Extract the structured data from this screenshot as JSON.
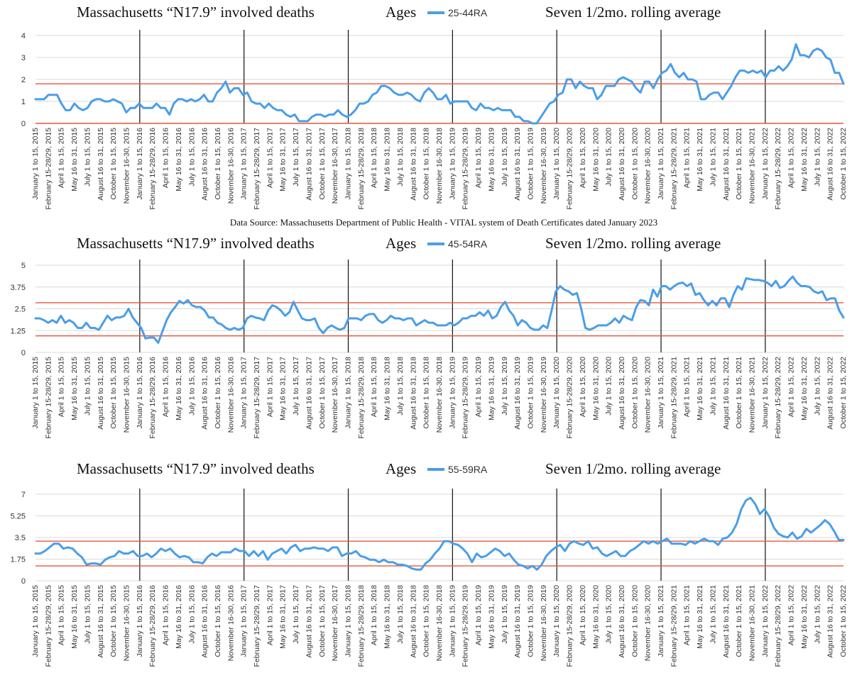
{
  "source_note": "Data Source:  Massachusetts Department of Public Health - VITAL system of Death Certificates dated January 2023",
  "x_tick_labels": [
    "January 1 to 15, 2015",
    "February 15-28/29, 2015",
    "April 1 to 15, 2015",
    "May 16 to 31, 2015",
    "July 1 to 15, 2015",
    "August 16 to 31, 2015",
    "October 1 to 15, 2015",
    "November 16-30, 2015",
    "January 1 to 15, 2016",
    "February 15-28/29, 2016",
    "April 1 to 15, 2016",
    "May 16 to 31, 2016",
    "July 1 to 15, 2016",
    "August 16 to 31, 2016",
    "October 1 to 15, 2016",
    "November 16-30, 2016",
    "January 1 to 15, 2017",
    "February 15-28/29, 2017",
    "April 1 to 15, 2017",
    "May 16 to 31, 2017",
    "July 1 to 15, 2017",
    "August 16 to 31, 2017",
    "October 1 to 15, 2017",
    "November 16-30, 2017",
    "January 1 to 15, 2018",
    "February 15-28/29, 2018",
    "April 1 to 15, 2018",
    "May 16 to 31, 2018",
    "July 1 to 15, 2018",
    "August 16 to 31, 2018",
    "October 1 to 15, 2018",
    "November 16-30, 2018",
    "January 1 to 15, 2019",
    "February 15-28/29, 2019",
    "April 1 to 15, 2019",
    "May 16 to 31, 2019",
    "July 1 to 15, 2019",
    "August 16 to 31, 2019",
    "October 1 to 15, 2019",
    "November 16-30, 2019",
    "January 1 to 15, 2020",
    "February 15-28/29, 2020",
    "April 1 to 15, 2020",
    "May 16 to 31, 2020",
    "July 1 to 15, 2020",
    "August 16 to 31, 2020",
    "October 1 to 15, 2020",
    "November 16-30, 2020",
    "January 1 to 15, 2021",
    "February 15-28/29, 2021",
    "April 1 to 15, 2021",
    "May 16 to 31, 2021",
    "July 1 to 15, 2021",
    "August 16 to 31, 2021",
    "October 1 to 15, 2021",
    "November 16-30, 2021",
    "January 1 to 15, 2022",
    "February 15-28/29, 2022",
    "April 1 to 15, 2022",
    "May 16 to 31, 2022",
    "July 1 to 15, 2022",
    "August 16 to 31, 2022",
    "October 1 to 15, 2022"
  ],
  "chart_data": [
    {
      "type": "line",
      "title": "Massachusetts “N17.9” involved deaths",
      "legend_prefix": "Ages",
      "subtitle": "Seven 1/2mo. rolling average",
      "legend_position": "top",
      "ylim": [
        0,
        4
      ],
      "y_ticks": [
        "0",
        "1",
        "2",
        "3",
        "4"
      ],
      "y_tick_values": [
        0,
        1,
        2,
        3,
        4
      ],
      "grid": true,
      "year_divider_labels": [
        "January 1 to 15, 2016",
        "January 1 to 15, 2017",
        "January 1 to 15, 2018",
        "January 1 to 15, 2019",
        "January 1 to 15, 2020",
        "January 1 to 15, 2021",
        "January 1 to 15, 2022"
      ],
      "reference_lines": [
        0,
        1.8
      ],
      "reference_color": "#e8573c",
      "series": [
        {
          "name": "25-44RA",
          "color": "#4a9ee8",
          "values": [
            1.1,
            1.1,
            1.1,
            1.3,
            1.3,
            1.3,
            0.9,
            0.6,
            0.6,
            0.9,
            0.7,
            0.6,
            0.7,
            1.0,
            1.1,
            1.1,
            1.0,
            1.0,
            1.1,
            1.0,
            0.9,
            0.5,
            0.7,
            0.7,
            0.9,
            0.7,
            0.7,
            0.7,
            0.9,
            0.7,
            0.7,
            0.4,
            0.9,
            1.1,
            1.1,
            1.0,
            1.1,
            1.0,
            1.1,
            1.3,
            1.0,
            1.0,
            1.4,
            1.6,
            1.9,
            1.4,
            1.6,
            1.6,
            1.3,
            1.4,
            1.0,
            0.9,
            0.9,
            0.7,
            0.9,
            0.7,
            0.6,
            0.6,
            0.4,
            0.3,
            0.4,
            0.1,
            0.1,
            0.1,
            0.3,
            0.4,
            0.4,
            0.3,
            0.4,
            0.4,
            0.6,
            0.4,
            0.3,
            0.4,
            0.6,
            0.9,
            0.9,
            1.0,
            1.3,
            1.4,
            1.7,
            1.7,
            1.6,
            1.4,
            1.3,
            1.3,
            1.4,
            1.3,
            1.1,
            1.0,
            1.4,
            1.6,
            1.4,
            1.1,
            1.1,
            1.3,
            0.9,
            1.0,
            1.0,
            1.0,
            1.0,
            0.7,
            0.6,
            0.9,
            0.7,
            0.7,
            0.6,
            0.7,
            0.6,
            0.6,
            0.6,
            0.3,
            0.3,
            0.1,
            0.1,
            0.0,
            0.0,
            0.3,
            0.6,
            0.9,
            1.0,
            1.3,
            1.4,
            2.0,
            2.0,
            1.6,
            1.9,
            1.7,
            1.6,
            1.6,
            1.1,
            1.3,
            1.7,
            1.7,
            1.7,
            2.0,
            2.1,
            2.0,
            1.9,
            1.6,
            1.4,
            1.9,
            1.9,
            1.6,
            2.0,
            2.3,
            2.4,
            2.7,
            2.3,
            2.1,
            2.3,
            2.0,
            2.0,
            1.9,
            1.1,
            1.1,
            1.3,
            1.4,
            1.4,
            1.1,
            1.4,
            1.7,
            2.1,
            2.4,
            2.4,
            2.3,
            2.4,
            2.3,
            2.4,
            2.1,
            2.4,
            2.4,
            2.6,
            2.4,
            2.6,
            2.9,
            3.6,
            3.1,
            3.1,
            3.0,
            3.3,
            3.4,
            3.3,
            3.0,
            2.9,
            2.3,
            2.3,
            1.8
          ]
        }
      ]
    },
    {
      "type": "line",
      "title": "Massachusetts “N17.9” involved deaths",
      "legend_prefix": "Ages",
      "subtitle": "Seven 1/2mo. rolling average",
      "legend_position": "top",
      "ylim": [
        0,
        5
      ],
      "y_ticks": [
        "0",
        "1.25",
        "2.5",
        "3.75",
        "5"
      ],
      "y_tick_values": [
        0,
        1.25,
        2.5,
        3.75,
        5
      ],
      "grid": true,
      "year_divider_labels": [
        "January 1 to 15, 2016",
        "January 1 to 15, 2017",
        "January 1 to 15, 2018",
        "January 1 to 15, 2019",
        "January 1 to 15, 2020",
        "January 1 to 15, 2021",
        "January 1 to 15, 2022"
      ],
      "reference_lines": [
        0.95,
        2.85
      ],
      "reference_color": "#e8573c",
      "series": [
        {
          "name": "45-54RA",
          "color": "#4a9ee8",
          "values": [
            1.95,
            1.95,
            1.85,
            1.7,
            1.85,
            1.7,
            2.1,
            1.7,
            1.85,
            1.7,
            1.4,
            1.4,
            1.7,
            1.4,
            1.4,
            1.3,
            1.7,
            2.1,
            1.85,
            2.0,
            2.0,
            2.1,
            2.5,
            2.0,
            1.7,
            1.4,
            0.8,
            0.85,
            0.85,
            0.55,
            1.2,
            1.85,
            2.3,
            2.6,
            2.95,
            2.8,
            3.0,
            2.7,
            2.6,
            2.6,
            2.4,
            2.0,
            2.0,
            1.7,
            1.6,
            1.4,
            1.3,
            1.4,
            1.3,
            1.4,
            1.95,
            2.1,
            2.0,
            1.95,
            1.85,
            2.4,
            2.7,
            2.6,
            2.4,
            2.1,
            2.3,
            2.9,
            2.4,
            1.95,
            1.85,
            1.85,
            1.95,
            1.4,
            1.1,
            1.4,
            1.55,
            1.4,
            1.3,
            1.4,
            1.95,
            1.95,
            1.95,
            1.85,
            2.1,
            2.2,
            2.2,
            1.85,
            1.7,
            1.85,
            2.1,
            1.95,
            1.95,
            1.85,
            1.95,
            1.95,
            1.55,
            1.7,
            1.85,
            1.7,
            1.7,
            1.55,
            1.55,
            1.55,
            1.7,
            1.55,
            1.7,
            1.95,
            1.95,
            2.1,
            2.1,
            2.3,
            2.1,
            2.4,
            1.95,
            2.1,
            2.6,
            2.9,
            2.4,
            2.1,
            1.55,
            1.85,
            1.7,
            1.4,
            1.3,
            1.3,
            1.55,
            1.4,
            2.4,
            3.5,
            3.8,
            3.6,
            3.5,
            3.3,
            3.4,
            2.5,
            1.4,
            1.3,
            1.4,
            1.55,
            1.55,
            1.55,
            1.7,
            1.95,
            1.7,
            2.1,
            1.95,
            1.85,
            2.6,
            3.0,
            2.95,
            2.7,
            3.6,
            3.2,
            3.8,
            3.8,
            3.6,
            3.8,
            3.95,
            4.0,
            3.8,
            3.95,
            3.3,
            3.4,
            3.0,
            2.7,
            2.95,
            2.7,
            3.1,
            3.1,
            2.6,
            3.3,
            3.8,
            3.6,
            4.25,
            4.2,
            4.15,
            4.15,
            4.1,
            4.0,
            3.8,
            4.1,
            3.7,
            3.8,
            4.1,
            4.35,
            4.0,
            3.8,
            3.8,
            3.75,
            3.5,
            3.4,
            3.5,
            3.0,
            3.1,
            3.1,
            2.4,
            2.0
          ]
        }
      ]
    },
    {
      "type": "line",
      "title": "Massachusetts “N17.9” involved deaths",
      "legend_prefix": "Ages",
      "subtitle": "Seven 1/2mo. rolling average",
      "legend_position": "top",
      "ylim": [
        0,
        7
      ],
      "y_ticks": [
        "0",
        "1.75",
        "3.5",
        "5.25",
        "7"
      ],
      "y_tick_values": [
        0,
        1.75,
        3.5,
        5.25,
        7
      ],
      "grid": true,
      "year_divider_labels": [
        "January 1 to 15, 2016",
        "January 1 to 15, 2017",
        "January 1 to 15, 2018",
        "January 1 to 15, 2019",
        "January 1 to 15, 2020",
        "January 1 to 15, 2021",
        "January 1 to 15, 2022"
      ],
      "reference_lines": [
        1.2,
        3.2
      ],
      "reference_color": "#e8573c",
      "series": [
        {
          "name": "55-59RA",
          "color": "#4a9ee8",
          "values": [
            2.2,
            2.2,
            2.4,
            2.7,
            3.0,
            3.0,
            2.6,
            2.7,
            2.6,
            2.2,
            1.9,
            1.3,
            1.4,
            1.4,
            1.3,
            1.7,
            1.9,
            2.0,
            2.4,
            2.2,
            2.2,
            2.4,
            2.0,
            2.0,
            2.2,
            1.9,
            2.2,
            2.6,
            2.4,
            2.6,
            2.2,
            1.9,
            2.0,
            1.9,
            1.5,
            1.5,
            1.4,
            1.9,
            2.2,
            2.0,
            2.3,
            2.3,
            2.3,
            2.6,
            2.4,
            2.4,
            2.0,
            2.4,
            2.0,
            2.4,
            1.7,
            2.2,
            2.4,
            2.6,
            2.2,
            2.7,
            2.9,
            2.4,
            2.6,
            2.6,
            2.7,
            2.6,
            2.6,
            2.4,
            2.7,
            2.7,
            2.0,
            2.2,
            2.2,
            2.4,
            2.0,
            1.9,
            1.7,
            1.7,
            1.5,
            1.7,
            1.5,
            1.5,
            1.3,
            1.3,
            1.2,
            1.0,
            0.9,
            0.9,
            1.4,
            1.7,
            2.2,
            2.6,
            3.2,
            3.2,
            3.0,
            2.9,
            2.6,
            2.2,
            1.5,
            2.2,
            1.9,
            2.0,
            2.3,
            2.6,
            2.4,
            2.0,
            2.2,
            1.7,
            1.3,
            1.2,
            1.0,
            1.2,
            0.9,
            1.3,
            2.0,
            2.4,
            2.7,
            2.9,
            2.4,
            3.0,
            3.2,
            3.0,
            2.9,
            3.2,
            2.6,
            2.7,
            2.2,
            2.0,
            2.2,
            2.4,
            2.0,
            2.0,
            2.4,
            2.6,
            2.9,
            3.2,
            3.0,
            3.2,
            3.0,
            3.2,
            3.4,
            3.0,
            3.0,
            3.0,
            2.9,
            3.2,
            3.0,
            3.2,
            3.4,
            3.2,
            3.2,
            2.9,
            3.4,
            3.5,
            3.9,
            4.6,
            5.8,
            6.5,
            6.7,
            6.2,
            5.4,
            5.8,
            5.2,
            4.3,
            3.8,
            3.6,
            3.5,
            3.9,
            3.4,
            3.6,
            4.2,
            3.9,
            4.2,
            4.5,
            4.9,
            4.6,
            4.0,
            3.3,
            3.3
          ]
        }
      ]
    }
  ]
}
